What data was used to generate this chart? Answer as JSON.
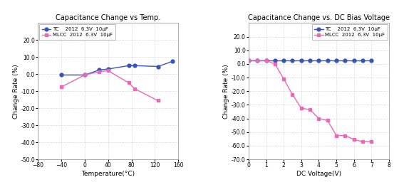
{
  "left_title": "Capacitance Change vs Temp.",
  "right_title": "Capacitance Change vs. DC Bias Voltage",
  "ylabel": "Change Rate (%)",
  "left_xlabel": "Temperature(°C)",
  "right_xlabel": "DC Voltage(V)",
  "tc_temp_x": [
    -40,
    0,
    25,
    40,
    75,
    85,
    125,
    150
  ],
  "tc_temp_y": [
    -0.5,
    -0.5,
    2.5,
    3.0,
    5.0,
    5.0,
    4.5,
    7.5
  ],
  "mlcc_temp_x": [
    -40,
    0,
    25,
    40,
    75,
    85,
    125
  ],
  "mlcc_temp_y": [
    -7.5,
    -0.5,
    1.5,
    2.0,
    -5.0,
    -8.5,
    -15.5
  ],
  "tc_volt_x": [
    0,
    0.5,
    1,
    1.5,
    2,
    2.5,
    3,
    3.5,
    4,
    4.5,
    5,
    5.5,
    6,
    6.5,
    7
  ],
  "tc_volt_y": [
    2.5,
    2.5,
    2.5,
    2.5,
    2.5,
    2.5,
    2.5,
    2.5,
    2.5,
    2.5,
    2.5,
    2.5,
    2.5,
    2.5,
    2.5
  ],
  "mlcc_volt_x": [
    0,
    0.5,
    1,
    1.5,
    2,
    2.5,
    3,
    3.5,
    4,
    4.5,
    5,
    5.5,
    6,
    6.5,
    7
  ],
  "mlcc_volt_y": [
    2.5,
    2.5,
    2.5,
    0.0,
    -11.0,
    -22.5,
    -32.5,
    -33.5,
    -40.0,
    -41.5,
    -52.5,
    -52.5,
    -55.5,
    -57.0,
    -57.0
  ],
  "tc_color": "#3355bb",
  "mlcc_color": "#ee66bb",
  "left_xlim": [
    -80,
    160
  ],
  "left_ylim": [
    -50.0,
    30.0
  ],
  "left_xticks": [
    -80,
    -40,
    0,
    40,
    80,
    120,
    160
  ],
  "left_yticks": [
    -50.0,
    -40.0,
    -30.0,
    -20.0,
    -10.0,
    0.0,
    10.0,
    20.0
  ],
  "right_xlim": [
    0,
    8
  ],
  "right_ylim": [
    -70.0,
    30.0
  ],
  "right_xticks": [
    0,
    1,
    2,
    3,
    4,
    5,
    6,
    7,
    8
  ],
  "right_yticks": [
    -70.0,
    -60.0,
    -50.0,
    -40.0,
    -30.0,
    -20.0,
    -10.0,
    0.0,
    10.0,
    20.0
  ],
  "legend_tc_label_part1": "TC",
  "legend_tc_label_part2": "  2012  6.3V  10μF",
  "legend_mlcc_label_part1": "MLCC",
  "legend_mlcc_label_part2": "  2012  6.3V  10μF",
  "bg_color": "#ffffff",
  "grid_color": "#bbbbbb"
}
